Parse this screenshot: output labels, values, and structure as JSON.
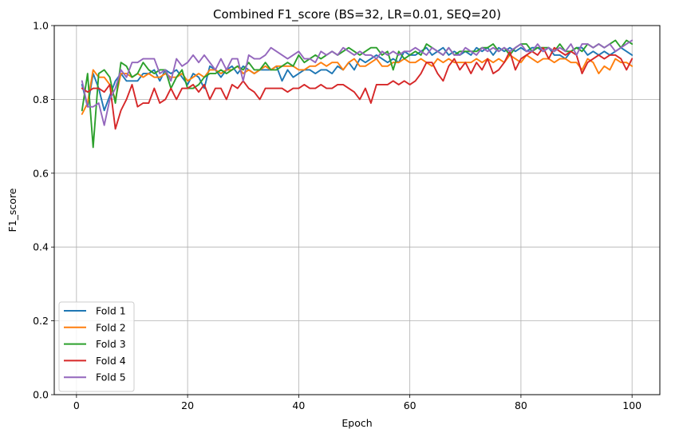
{
  "chart_data": {
    "type": "line",
    "title": "Combined F1_score (BS=32, LR=0.01, SEQ=20)",
    "xlabel": "Epoch",
    "ylabel": "F1_score",
    "xlim": [
      -4,
      105
    ],
    "ylim": [
      0.0,
      1.0
    ],
    "xticks": [
      0,
      20,
      40,
      60,
      80,
      100
    ],
    "yticks": [
      0.0,
      0.2,
      0.4,
      0.6,
      0.8,
      1.0
    ],
    "xtick_labels": [
      "0",
      "20",
      "40",
      "60",
      "80",
      "100"
    ],
    "ytick_labels": [
      "0.0",
      "0.2",
      "0.4",
      "0.6",
      "0.8",
      "1.0"
    ],
    "grid": true,
    "legend_position": "lower-left",
    "x": [
      1,
      2,
      3,
      4,
      5,
      6,
      7,
      8,
      9,
      10,
      11,
      12,
      13,
      14,
      15,
      16,
      17,
      18,
      19,
      20,
      21,
      22,
      23,
      24,
      25,
      26,
      27,
      28,
      29,
      30,
      31,
      32,
      33,
      34,
      35,
      36,
      37,
      38,
      39,
      40,
      41,
      42,
      43,
      44,
      45,
      46,
      47,
      48,
      49,
      50,
      51,
      52,
      53,
      54,
      55,
      56,
      57,
      58,
      59,
      60,
      61,
      62,
      63,
      64,
      65,
      66,
      67,
      68,
      69,
      70,
      71,
      72,
      73,
      74,
      75,
      76,
      77,
      78,
      79,
      80,
      81,
      82,
      83,
      84,
      85,
      86,
      87,
      88,
      89,
      90,
      91,
      92,
      93,
      94,
      95,
      96,
      97,
      98,
      99,
      100
    ],
    "series": [
      {
        "name": "Fold 1",
        "color": "#1f77b4",
        "values": [
          0.84,
          0.78,
          0.87,
          0.83,
          0.77,
          0.81,
          0.85,
          0.87,
          0.85,
          0.85,
          0.85,
          0.87,
          0.87,
          0.88,
          0.85,
          0.88,
          0.87,
          0.88,
          0.86,
          0.84,
          0.87,
          0.86,
          0.83,
          0.89,
          0.88,
          0.86,
          0.88,
          0.89,
          0.87,
          0.89,
          0.88,
          0.87,
          0.88,
          0.88,
          0.88,
          0.89,
          0.85,
          0.88,
          0.86,
          0.87,
          0.88,
          0.88,
          0.87,
          0.88,
          0.88,
          0.87,
          0.89,
          0.88,
          0.9,
          0.88,
          0.91,
          0.9,
          0.91,
          0.92,
          0.91,
          0.9,
          0.91,
          0.9,
          0.93,
          0.92,
          0.92,
          0.93,
          0.94,
          0.92,
          0.93,
          0.94,
          0.92,
          0.93,
          0.92,
          0.93,
          0.92,
          0.94,
          0.93,
          0.94,
          0.92,
          0.94,
          0.93,
          0.94,
          0.93,
          0.94,
          0.93,
          0.94,
          0.94,
          0.93,
          0.94,
          0.92,
          0.92,
          0.91,
          0.93,
          0.94,
          0.94,
          0.92,
          0.93,
          0.92,
          0.93,
          0.92,
          0.93,
          0.94,
          0.93,
          0.92
        ]
      },
      {
        "name": "Fold 2",
        "color": "#ff7f0e",
        "values": [
          0.76,
          0.79,
          0.88,
          0.86,
          0.86,
          0.84,
          0.8,
          0.87,
          0.87,
          0.86,
          0.87,
          0.86,
          0.87,
          0.86,
          0.86,
          0.87,
          0.86,
          0.86,
          0.87,
          0.85,
          0.86,
          0.87,
          0.86,
          0.88,
          0.88,
          0.87,
          0.88,
          0.88,
          0.89,
          0.87,
          0.88,
          0.87,
          0.88,
          0.89,
          0.88,
          0.89,
          0.89,
          0.89,
          0.89,
          0.88,
          0.88,
          0.89,
          0.89,
          0.9,
          0.89,
          0.9,
          0.9,
          0.88,
          0.9,
          0.91,
          0.89,
          0.89,
          0.9,
          0.91,
          0.89,
          0.89,
          0.9,
          0.9,
          0.91,
          0.9,
          0.9,
          0.91,
          0.9,
          0.89,
          0.91,
          0.9,
          0.91,
          0.9,
          0.9,
          0.9,
          0.9,
          0.91,
          0.9,
          0.91,
          0.9,
          0.91,
          0.9,
          0.92,
          0.91,
          0.9,
          0.92,
          0.91,
          0.9,
          0.91,
          0.91,
          0.9,
          0.91,
          0.91,
          0.9,
          0.9,
          0.88,
          0.91,
          0.9,
          0.87,
          0.89,
          0.88,
          0.91,
          0.9,
          0.9,
          0.89
        ]
      },
      {
        "name": "Fold 3",
        "color": "#2ca02c",
        "values": [
          0.77,
          0.87,
          0.67,
          0.87,
          0.88,
          0.86,
          0.79,
          0.9,
          0.89,
          0.86,
          0.87,
          0.9,
          0.88,
          0.87,
          0.88,
          0.88,
          0.83,
          0.86,
          0.88,
          0.83,
          0.83,
          0.84,
          0.86,
          0.87,
          0.87,
          0.88,
          0.87,
          0.88,
          0.89,
          0.88,
          0.9,
          0.88,
          0.88,
          0.9,
          0.88,
          0.88,
          0.89,
          0.9,
          0.89,
          0.92,
          0.9,
          0.91,
          0.92,
          0.91,
          0.92,
          0.93,
          0.92,
          0.93,
          0.94,
          0.93,
          0.92,
          0.93,
          0.94,
          0.94,
          0.92,
          0.93,
          0.88,
          0.93,
          0.91,
          0.92,
          0.93,
          0.92,
          0.95,
          0.94,
          0.93,
          0.92,
          0.94,
          0.92,
          0.93,
          0.93,
          0.93,
          0.93,
          0.94,
          0.94,
          0.95,
          0.93,
          0.94,
          0.92,
          0.94,
          0.95,
          0.95,
          0.93,
          0.94,
          0.94,
          0.94,
          0.93,
          0.95,
          0.93,
          0.93,
          0.94,
          0.93,
          0.95,
          0.94,
          0.95,
          0.94,
          0.95,
          0.96,
          0.94,
          0.96,
          0.95
        ]
      },
      {
        "name": "Fold 4",
        "color": "#d62728",
        "values": [
          0.83,
          0.82,
          0.83,
          0.83,
          0.82,
          0.84,
          0.72,
          0.77,
          0.8,
          0.84,
          0.78,
          0.79,
          0.79,
          0.83,
          0.79,
          0.8,
          0.83,
          0.8,
          0.83,
          0.83,
          0.84,
          0.82,
          0.84,
          0.8,
          0.83,
          0.83,
          0.8,
          0.84,
          0.83,
          0.85,
          0.83,
          0.82,
          0.8,
          0.83,
          0.83,
          0.83,
          0.83,
          0.82,
          0.83,
          0.83,
          0.84,
          0.83,
          0.83,
          0.84,
          0.83,
          0.83,
          0.84,
          0.84,
          0.83,
          0.82,
          0.8,
          0.83,
          0.79,
          0.84,
          0.84,
          0.84,
          0.85,
          0.84,
          0.85,
          0.84,
          0.85,
          0.87,
          0.9,
          0.9,
          0.87,
          0.85,
          0.89,
          0.91,
          0.88,
          0.9,
          0.87,
          0.9,
          0.88,
          0.91,
          0.87,
          0.88,
          0.9,
          0.93,
          0.88,
          0.91,
          0.92,
          0.93,
          0.92,
          0.94,
          0.91,
          0.94,
          0.93,
          0.92,
          0.93,
          0.92,
          0.87,
          0.9,
          0.91,
          0.92,
          0.91,
          0.92,
          0.92,
          0.91,
          0.88,
          0.91
        ]
      },
      {
        "name": "Fold 5",
        "color": "#9467bd",
        "values": [
          0.85,
          0.78,
          0.78,
          0.79,
          0.73,
          0.8,
          0.83,
          0.88,
          0.86,
          0.9,
          0.9,
          0.91,
          0.91,
          0.91,
          0.87,
          0.88,
          0.85,
          0.91,
          0.89,
          0.9,
          0.92,
          0.9,
          0.92,
          0.9,
          0.88,
          0.91,
          0.88,
          0.91,
          0.91,
          0.85,
          0.92,
          0.91,
          0.91,
          0.92,
          0.94,
          0.93,
          0.92,
          0.91,
          0.92,
          0.93,
          0.91,
          0.91,
          0.9,
          0.93,
          0.92,
          0.93,
          0.92,
          0.94,
          0.93,
          0.92,
          0.93,
          0.92,
          0.92,
          0.91,
          0.93,
          0.92,
          0.93,
          0.92,
          0.93,
          0.93,
          0.94,
          0.93,
          0.92,
          0.94,
          0.93,
          0.92,
          0.94,
          0.92,
          0.92,
          0.94,
          0.93,
          0.92,
          0.94,
          0.93,
          0.94,
          0.93,
          0.94,
          0.93,
          0.94,
          0.95,
          0.93,
          0.93,
          0.95,
          0.93,
          0.94,
          0.93,
          0.94,
          0.93,
          0.95,
          0.92,
          0.95,
          0.95,
          0.94,
          0.95,
          0.94,
          0.95,
          0.93,
          0.94,
          0.95,
          0.96
        ]
      }
    ]
  }
}
